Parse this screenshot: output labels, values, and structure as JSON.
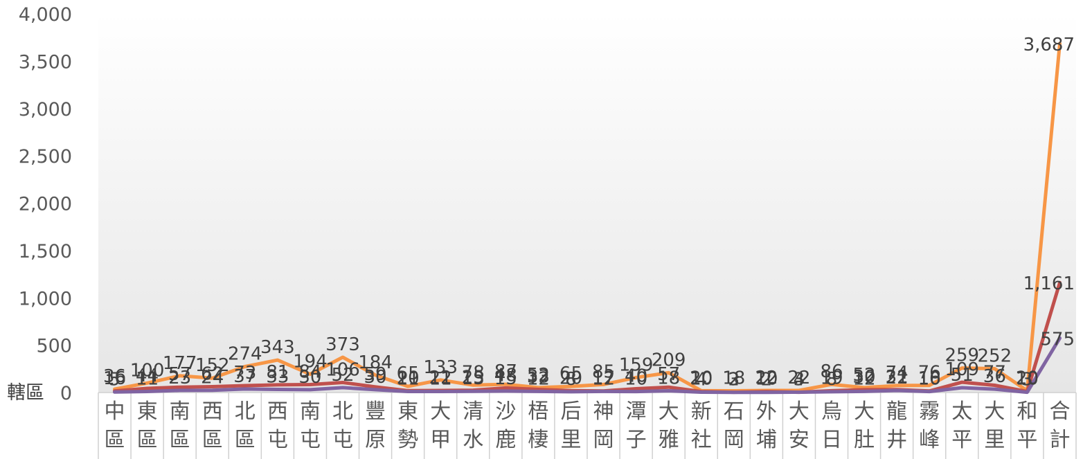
{
  "chart_data": {
    "type": "line",
    "corner_label": "轄區",
    "categories": [
      "中區",
      "東區",
      "南區",
      "西區",
      "北區",
      "西屯",
      "南屯",
      "北屯",
      "豐原",
      "東勢",
      "大甲",
      "清水",
      "沙鹿",
      "梧棲",
      "后里",
      "神岡",
      "潭子",
      "大雅",
      "新社",
      "石岡",
      "外埔",
      "大安",
      "烏日",
      "大肚",
      "龍井",
      "霧峰",
      "太平",
      "大里",
      "和平",
      "合計"
    ],
    "ylim": [
      0,
      4000
    ],
    "yticks": [
      "4,000",
      "3,500",
      "3,000",
      "2,500",
      "2,000",
      "1,500",
      "1,000",
      "500",
      "0"
    ],
    "grid": false,
    "legend": "none",
    "series": [
      {
        "color": "#F79646",
        "values": [
          36,
          100,
          177,
          152,
          274,
          343,
          194,
          373,
          184,
          65,
          133,
          78,
          87,
          52,
          65,
          85,
          159,
          209,
          20,
          18,
          22,
          22,
          86,
          52,
          74,
          76,
          259,
          252,
          20,
          3687
        ]
      },
      {
        "color": "#C0504D",
        "values": [
          16,
          44,
          57,
          62,
          73,
          81,
          84,
          106,
          59,
          20,
          22,
          25,
          48,
          33,
          20,
          17,
          40,
          57,
          10,
          3,
          10,
          3,
          19,
          30,
          31,
          16,
          109,
          77,
          10,
          1161
        ]
      },
      {
        "color": "#8064A2",
        "values": [
          5,
          11,
          23,
          24,
          37,
          33,
          30,
          52,
          30,
          11,
          11,
          13,
          15,
          12,
          8,
          12,
          10,
          18,
          4,
          2,
          2,
          4,
          8,
          12,
          22,
          10,
          51,
          36,
          3,
          575
        ]
      }
    ],
    "total_labels": [
      "3,687",
      "1,161",
      "575"
    ]
  }
}
